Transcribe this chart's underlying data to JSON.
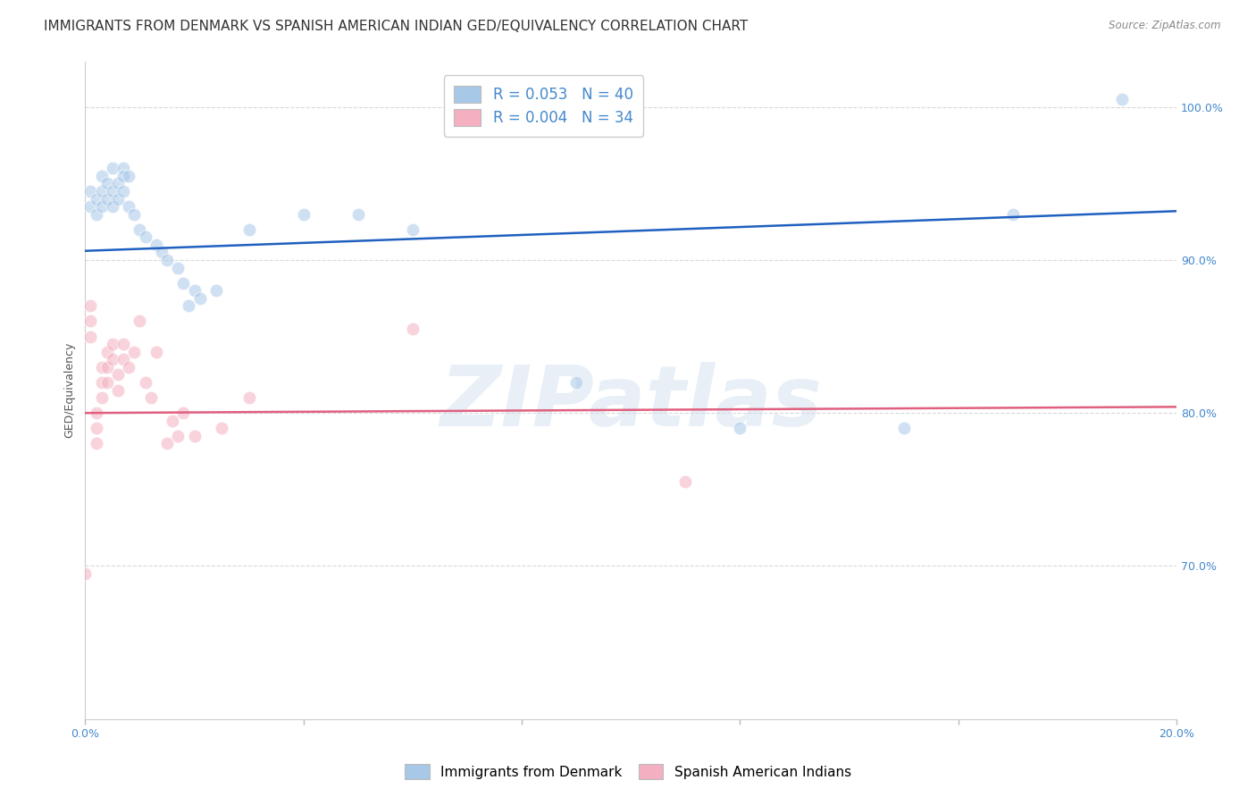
{
  "title": "IMMIGRANTS FROM DENMARK VS SPANISH AMERICAN INDIAN GED/EQUIVALENCY CORRELATION CHART",
  "source": "Source: ZipAtlas.com",
  "ylabel": "GED/Equivalency",
  "watermark": "ZIPatlas",
  "xmin": 0.0,
  "xmax": 0.2,
  "ymin": 0.6,
  "ymax": 1.03,
  "x_ticks": [
    0.0,
    0.04,
    0.08,
    0.12,
    0.16,
    0.2
  ],
  "y_ticks": [
    0.7,
    0.8,
    0.9,
    1.0
  ],
  "y_tick_labels": [
    "70.0%",
    "80.0%",
    "90.0%",
    "100.0%"
  ],
  "series1_name": "Immigrants from Denmark",
  "series2_name": "Spanish American Indians",
  "series1_color": "#a8c8e8",
  "series2_color": "#f4b0c0",
  "series1_line_color": "#2060c0",
  "series2_line_color": "#e06080",
  "series1_N": 40,
  "series2_N": 34,
  "blue_dots_x": [
    0.001,
    0.001,
    0.002,
    0.002,
    0.003,
    0.003,
    0.003,
    0.004,
    0.004,
    0.005,
    0.005,
    0.005,
    0.006,
    0.006,
    0.007,
    0.007,
    0.007,
    0.008,
    0.008,
    0.009,
    0.01,
    0.011,
    0.013,
    0.014,
    0.015,
    0.017,
    0.018,
    0.019,
    0.02,
    0.021,
    0.024,
    0.03,
    0.04,
    0.05,
    0.06,
    0.09,
    0.12,
    0.15,
    0.17,
    0.19
  ],
  "blue_dots_y": [
    0.935,
    0.945,
    0.93,
    0.94,
    0.955,
    0.945,
    0.935,
    0.95,
    0.94,
    0.96,
    0.945,
    0.935,
    0.95,
    0.94,
    0.96,
    0.955,
    0.945,
    0.955,
    0.935,
    0.93,
    0.92,
    0.915,
    0.91,
    0.905,
    0.9,
    0.895,
    0.885,
    0.87,
    0.88,
    0.875,
    0.88,
    0.92,
    0.93,
    0.93,
    0.92,
    0.82,
    0.79,
    0.79,
    0.93,
    1.005
  ],
  "pink_dots_x": [
    0.0,
    0.001,
    0.001,
    0.001,
    0.002,
    0.002,
    0.002,
    0.003,
    0.003,
    0.003,
    0.004,
    0.004,
    0.004,
    0.005,
    0.005,
    0.006,
    0.006,
    0.007,
    0.007,
    0.008,
    0.009,
    0.01,
    0.011,
    0.012,
    0.013,
    0.015,
    0.016,
    0.017,
    0.018,
    0.02,
    0.025,
    0.03,
    0.06,
    0.11
  ],
  "pink_dots_y": [
    0.695,
    0.87,
    0.86,
    0.85,
    0.8,
    0.79,
    0.78,
    0.83,
    0.82,
    0.81,
    0.84,
    0.83,
    0.82,
    0.845,
    0.835,
    0.825,
    0.815,
    0.845,
    0.835,
    0.83,
    0.84,
    0.86,
    0.82,
    0.81,
    0.84,
    0.78,
    0.795,
    0.785,
    0.8,
    0.785,
    0.79,
    0.81,
    0.855,
    0.755
  ],
  "background_color": "#ffffff",
  "grid_color": "#d8d8d8",
  "title_color": "#333333",
  "axis_color": "#4488cc",
  "title_fontsize": 11.0,
  "source_fontsize": 8.5,
  "axis_label_fontsize": 9,
  "tick_fontsize": 9,
  "legend_fontsize": 12,
  "watermark_color": "#ccdded",
  "watermark_alpha": 0.45,
  "dot_size": 110,
  "dot_alpha": 0.55
}
